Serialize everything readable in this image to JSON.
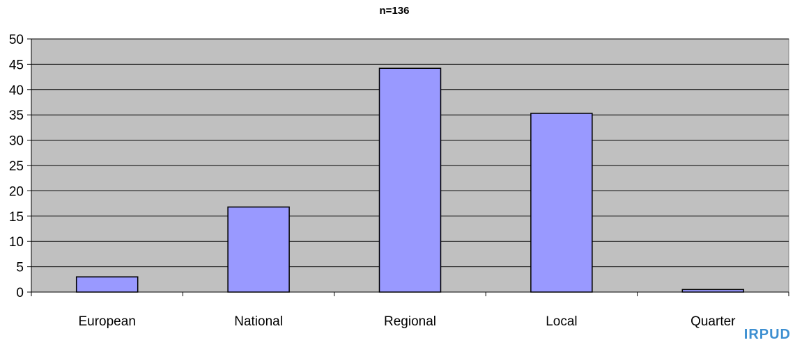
{
  "chart_data": {
    "type": "bar",
    "title": "n=136",
    "categories": [
      "European",
      "National",
      "Regional",
      "Local",
      "Quarter"
    ],
    "values": [
      3,
      16.8,
      44.2,
      35.3,
      0.5
    ],
    "ylim": [
      0,
      50
    ],
    "yticks": [
      0,
      5,
      10,
      15,
      20,
      25,
      30,
      35,
      40,
      45,
      50
    ],
    "xlabel": "",
    "ylabel": "",
    "grid": true,
    "colors": {
      "bar": "#9999ff",
      "plot_background": "#c0c0c0",
      "gridline": "#000000"
    }
  },
  "watermark": "IRPUD"
}
